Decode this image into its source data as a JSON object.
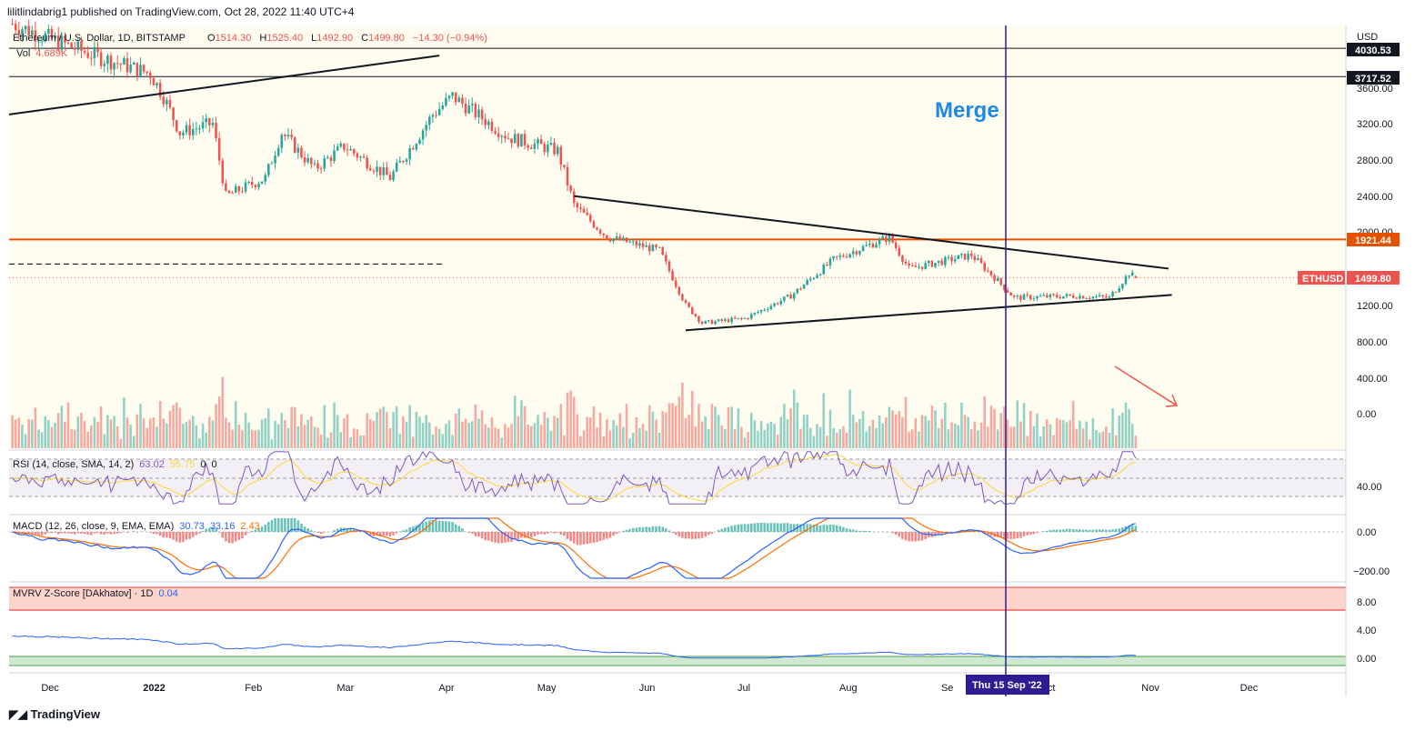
{
  "header": {
    "published_line": "lilitlindabrig1 published on TradingView.com, Oct 28, 2022 11:40 UTC+4"
  },
  "legend": {
    "symbol": "Ethereum / U.S. Dollar, 1D, BITSTAMP",
    "o_label": "O",
    "o_value": "1514.30",
    "h_label": "H",
    "h_value": "1525.40",
    "l_label": "L",
    "l_value": "1492.90",
    "c_label": "C",
    "c_value": "1499.80",
    "change": "−14.30 (−0.94%)",
    "vol_label": "Vol",
    "vol_value": "4.689K"
  },
  "annotations": {
    "merge_label": "Merge",
    "merge_date_label": "Thu 15 Sep '22"
  },
  "price_axis": {
    "currency": "USD",
    "ticks": [
      "3600.00",
      "3200.00",
      "2800.00",
      "2400.00",
      "2000.00",
      "1200.00",
      "800.00",
      "400.00",
      "0.00"
    ],
    "badges": {
      "level_4030": "4030.53",
      "level_3717": "3717.52",
      "level_1921": "1921.44",
      "ticker": "ETHUSD",
      "last_price": "1499.80"
    }
  },
  "rsi_panel": {
    "title": "RSI (14, close, SMA, 14, 2)",
    "value1": "63.02",
    "value2": "55.75",
    "value3": "0",
    "value4": "0",
    "tick": "40.00"
  },
  "macd_panel": {
    "title": "MACD (12, 26, close, 9, EMA, EMA)",
    "value1": "30.73",
    "value2": "33.16",
    "value3": "2.43",
    "ticks": [
      "0.00",
      "−200.00"
    ]
  },
  "mvrv_panel": {
    "title": "MVRV Z-Score [DAkhatov] · 1D",
    "value": "0.04",
    "ticks": [
      "8.00",
      "4.00",
      "0.00"
    ]
  },
  "time_axis": {
    "labels": [
      "Dec",
      "2022",
      "Feb",
      "Mar",
      "Apr",
      "May",
      "Jun",
      "Jul",
      "Aug",
      "Se",
      "Oct",
      "Nov",
      "Dec"
    ]
  },
  "footer": {
    "brand": "TradingView"
  },
  "colors": {
    "up": "#26a69a",
    "down": "#ef5350",
    "resistance": "#e65100",
    "merge_line": "#311b92",
    "rsi_line": "#7e57c2",
    "rsi_ma": "#fdd835",
    "macd_line": "#2962ff",
    "signal_line": "#ff6d00",
    "mvrv_line": "#2962ff",
    "background": "#fffdf0",
    "merge_text": "#1e88e5"
  },
  "chart_data": {
    "type": "candlestick",
    "symbol": "ETHUSD",
    "interval": "1D",
    "exchange": "BITSTAMP",
    "x_range": [
      "2021-11-19",
      "2022-12-31"
    ],
    "y_range": [
      -100,
      4100
    ],
    "horizontal_levels": [
      4030.53,
      3717.52,
      1921.44,
      1650
    ],
    "last_close": 1499.8,
    "merge_date": "2022-09-15",
    "monthly_path": [
      {
        "date": "2021-11-20",
        "close": 4300
      },
      {
        "date": "2021-12-04",
        "close": 4100
      },
      {
        "date": "2021-12-15",
        "close": 3950
      },
      {
        "date": "2022-01-01",
        "close": 3750
      },
      {
        "date": "2022-01-05",
        "close": 3500
      },
      {
        "date": "2022-01-10",
        "close": 3100
      },
      {
        "date": "2022-01-20",
        "close": 3200
      },
      {
        "date": "2022-01-24",
        "close": 2400
      },
      {
        "date": "2022-02-05",
        "close": 2600
      },
      {
        "date": "2022-02-10",
        "close": 3100
      },
      {
        "date": "2022-02-20",
        "close": 2700
      },
      {
        "date": "2022-03-01",
        "close": 2950
      },
      {
        "date": "2022-03-15",
        "close": 2600
      },
      {
        "date": "2022-03-28",
        "close": 3300
      },
      {
        "date": "2022-04-03",
        "close": 3500
      },
      {
        "date": "2022-04-20",
        "close": 3050
      },
      {
        "date": "2022-05-05",
        "close": 2900
      },
      {
        "date": "2022-05-10",
        "close": 2300
      },
      {
        "date": "2022-05-20",
        "close": 1950
      },
      {
        "date": "2022-06-05",
        "close": 1800
      },
      {
        "date": "2022-06-13",
        "close": 1200
      },
      {
        "date": "2022-06-18",
        "close": 1000
      },
      {
        "date": "2022-07-01",
        "close": 1050
      },
      {
        "date": "2022-07-15",
        "close": 1300
      },
      {
        "date": "2022-07-28",
        "close": 1700
      },
      {
        "date": "2022-08-14",
        "close": 1950
      },
      {
        "date": "2022-08-20",
        "close": 1600
      },
      {
        "date": "2022-09-08",
        "close": 1750
      },
      {
        "date": "2022-09-15",
        "close": 1500
      },
      {
        "date": "2022-09-21",
        "close": 1280
      },
      {
        "date": "2022-10-10",
        "close": 1300
      },
      {
        "date": "2022-10-20",
        "close": 1280
      },
      {
        "date": "2022-10-26",
        "close": 1550
      },
      {
        "date": "2022-10-28",
        "close": 1499.8
      }
    ],
    "trendlines": [
      {
        "from": {
          "date": "2021-11-19",
          "price": 3300
        },
        "to": {
          "date": "2022-03-30",
          "price": 3950
        }
      },
      {
        "from": {
          "date": "2022-05-10",
          "price": 2400
        },
        "to": {
          "date": "2022-11-07",
          "price": 1600
        }
      },
      {
        "from": {
          "date": "2022-06-13",
          "price": 920
        },
        "to": {
          "date": "2022-11-08",
          "price": 1310
        }
      }
    ]
  }
}
